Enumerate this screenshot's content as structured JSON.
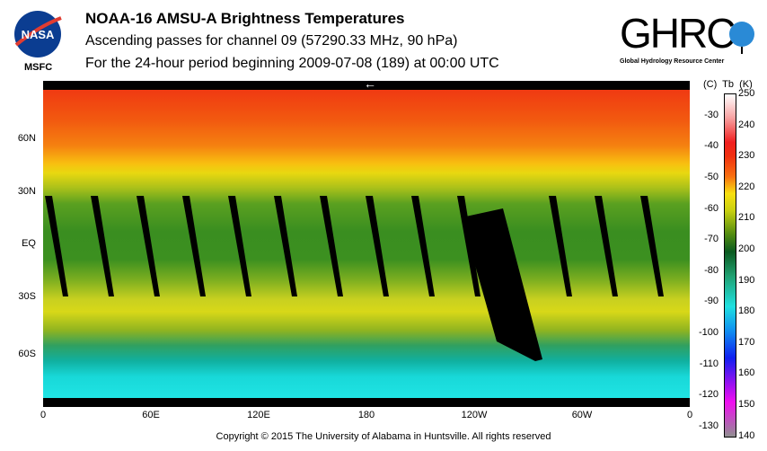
{
  "header": {
    "title": "NOAA-16 AMSU-A Brightness Temperatures",
    "subtitle": "Ascending passes for channel 09 (57290.33 MHz, 90 hPa)",
    "period": "For the 24-hour period beginning 2009-07-08 (189) at 00:00 UTC"
  },
  "logos": {
    "nasa": "NASA",
    "nasa_center": "MSFC",
    "ghrc": "GHRC",
    "ghrc_full": "Global Hydrology Resource Center"
  },
  "map": {
    "lat_labels": [
      "60N",
      "30N",
      "EQ",
      "30S",
      "60S"
    ],
    "lon_labels": [
      "0",
      "60E",
      "120E",
      "180",
      "120W",
      "60W",
      "0"
    ],
    "direction_arrow": "←"
  },
  "colorbar": {
    "header": "(C)  Tb  (K)",
    "kelvin": [
      "250",
      "240",
      "230",
      "220",
      "210",
      "200",
      "190",
      "180",
      "170",
      "160",
      "150",
      "140"
    ],
    "celsius": [
      "-30",
      "-40",
      "-50",
      "-60",
      "-70",
      "-80",
      "-90",
      "-100",
      "-110",
      "-120",
      "-130"
    ]
  },
  "footer": {
    "copyright": "Copyright © 2015 The University of Alabama in Huntsville.  All rights reserved"
  }
}
